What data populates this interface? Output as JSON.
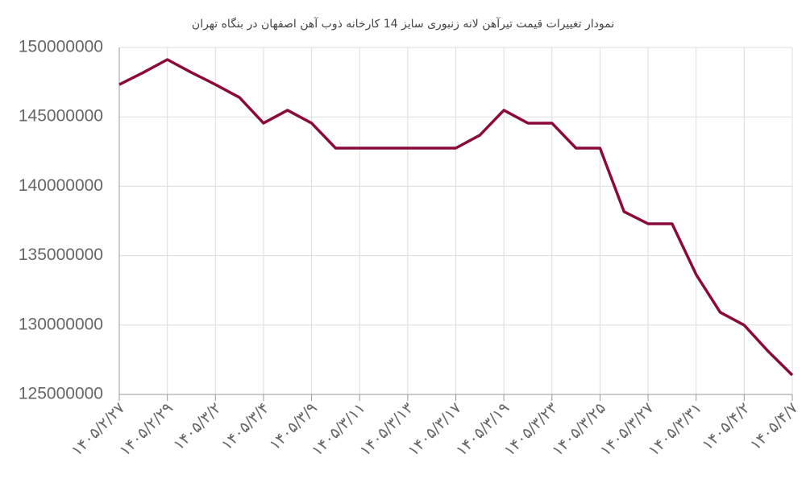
{
  "chart_data": {
    "type": "line",
    "title": "نمودار تغییرات قیمت تیرآهن لانه زنبوری سایز 14 کارخانه ذوب آهن اصفهان در بنگاه تهران",
    "categories": [
      "۱۴۰۵/۲/۲۷",
      null,
      "۱۴۰۵/۲/۲۹",
      null,
      "۱۴۰۵/۳/۲",
      null,
      "۱۴۰۵/۳/۴",
      null,
      "۱۴۰۵/۳/۹",
      null,
      "۱۴۰۵/۳/۱۱",
      null,
      "۱۴۰۵/۳/۱۳",
      null,
      "۱۴۰۵/۳/۱۷",
      null,
      "۱۴۰۵/۳/۱۹",
      null,
      "۱۴۰۵/۳/۲۳",
      null,
      "۱۴۰۵/۳/۲۵",
      null,
      "۱۴۰۵/۳/۲۷",
      null,
      "۱۴۰۵/۳/۳۱",
      null,
      "۱۴۰۵/۴/۲",
      null,
      "۱۴۰۵/۴/۷"
    ],
    "series": [
      {
        "color": "#8a0a3c",
        "values": [
          147330000,
          148200000,
          149130000,
          148200000,
          147330000,
          146400000,
          144550000,
          145480000,
          144550000,
          142750000,
          142750000,
          142750000,
          142750000,
          142750000,
          142750000,
          143680000,
          145480000,
          144550000,
          144550000,
          142750000,
          142750000,
          138170000,
          137300000,
          137300000,
          133640000,
          130920000,
          129990000,
          128100000,
          126390000
        ]
      }
    ],
    "ylim": [
      125000000,
      150000000
    ],
    "yticks": [
      125000000,
      130000000,
      135000000,
      140000000,
      145000000,
      150000000
    ],
    "grid": true
  }
}
